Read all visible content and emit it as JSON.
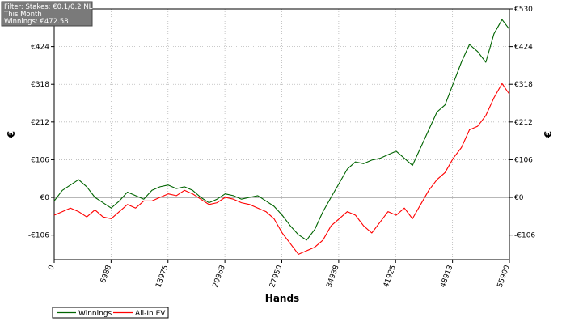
{
  "chart_data": {
    "type": "line",
    "xlabel": "Hands",
    "ylabel": "€",
    "ylabel_right": "€",
    "xlim": [
      0,
      55900
    ],
    "ylim": [
      -175,
      530
    ],
    "x_ticks": [
      0,
      6988,
      13975,
      20963,
      27950,
      34938,
      41925,
      48913,
      55900
    ],
    "y_ticks": [
      {
        "value": 530,
        "label": "€530"
      },
      {
        "value": 424,
        "label": "€424"
      },
      {
        "value": 318,
        "label": "€318"
      },
      {
        "value": 212,
        "label": "€212"
      },
      {
        "value": 106,
        "label": "€106"
      },
      {
        "value": 0,
        "label": "€0"
      },
      {
        "value": -106,
        "label": "-€106"
      }
    ],
    "grid": true,
    "legend_position": "bottom-left",
    "filter_box": [
      "Filter: Stakes: €0.1/0.2 NL",
      "This Month",
      "Winnings: €472.58"
    ],
    "series": [
      {
        "name": "Winnings",
        "color": "#006400",
        "x": [
          0,
          1000,
          2000,
          3000,
          4000,
          5000,
          6000,
          7000,
          8000,
          9000,
          10000,
          11000,
          12000,
          13000,
          14000,
          15000,
          16000,
          17000,
          18000,
          19000,
          20000,
          21000,
          22000,
          23000,
          24000,
          25000,
          26000,
          27000,
          28000,
          29000,
          30000,
          31000,
          32000,
          33000,
          34000,
          35000,
          36000,
          37000,
          38000,
          39000,
          40000,
          41000,
          42000,
          43000,
          44000,
          45000,
          46000,
          47000,
          48000,
          49000,
          50000,
          51000,
          52000,
          53000,
          54000,
          55000,
          55900
        ],
        "y": [
          -10,
          20,
          35,
          50,
          30,
          0,
          -15,
          -30,
          -10,
          15,
          5,
          -5,
          20,
          30,
          35,
          25,
          30,
          20,
          0,
          -15,
          -5,
          10,
          5,
          -5,
          0,
          5,
          -10,
          -25,
          -50,
          -80,
          -105,
          -120,
          -90,
          -40,
          0,
          40,
          80,
          100,
          95,
          105,
          110,
          120,
          130,
          110,
          90,
          140,
          190,
          240,
          260,
          320,
          380,
          430,
          410,
          380,
          460,
          500,
          472.58
        ]
      },
      {
        "name": "All-In EV",
        "color": "#ff0000",
        "x": [
          0,
          1000,
          2000,
          3000,
          4000,
          5000,
          6000,
          7000,
          8000,
          9000,
          10000,
          11000,
          12000,
          13000,
          14000,
          15000,
          16000,
          17000,
          18000,
          19000,
          20000,
          21000,
          22000,
          23000,
          24000,
          25000,
          26000,
          27000,
          28000,
          29000,
          30000,
          31000,
          32000,
          33000,
          34000,
          35000,
          36000,
          37000,
          38000,
          39000,
          40000,
          41000,
          42000,
          43000,
          44000,
          45000,
          46000,
          47000,
          48000,
          49000,
          50000,
          51000,
          52000,
          53000,
          54000,
          55000,
          55900
        ],
        "y": [
          -50,
          -40,
          -30,
          -40,
          -55,
          -35,
          -55,
          -60,
          -40,
          -20,
          -30,
          -10,
          -10,
          0,
          10,
          5,
          20,
          10,
          -5,
          -20,
          -15,
          0,
          -5,
          -15,
          -20,
          -30,
          -40,
          -60,
          -100,
          -130,
          -160,
          -150,
          -140,
          -120,
          -80,
          -60,
          -40,
          -50,
          -80,
          -100,
          -70,
          -40,
          -50,
          -30,
          -60,
          -20,
          20,
          50,
          70,
          110,
          140,
          190,
          200,
          230,
          280,
          320,
          290
        ]
      }
    ]
  }
}
